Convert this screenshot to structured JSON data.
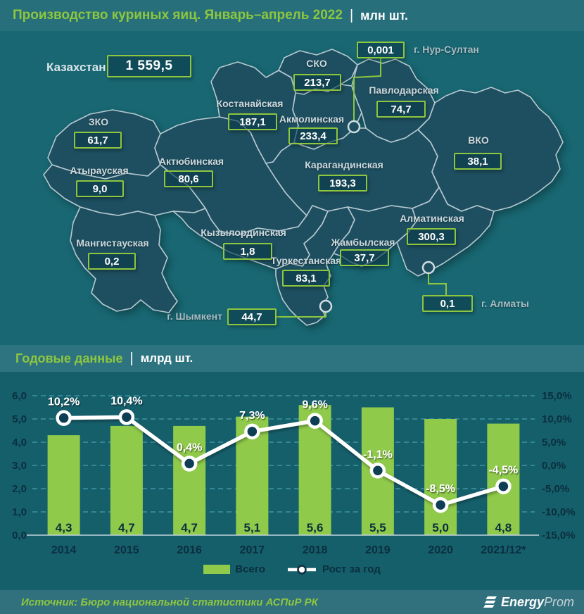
{
  "header": {
    "title": "Производство куриных яиц. Январь–апрель 2022",
    "separator": "|",
    "unit": "млн шт."
  },
  "map": {
    "country": {
      "label": "Казахстан",
      "value": "1 559,5"
    },
    "regions": [
      {
        "name": "ЗКО",
        "value": "61,7"
      },
      {
        "name": "Атырауская",
        "value": "9,0"
      },
      {
        "name": "Мангистауская",
        "value": "0,2"
      },
      {
        "name": "Актюбинская",
        "value": "80,6"
      },
      {
        "name": "Костанайская",
        "value": "187,1"
      },
      {
        "name": "СКО",
        "value": "213,7"
      },
      {
        "name": "Акмолинская",
        "value": "233,4"
      },
      {
        "name": "Павлодарская",
        "value": "74,7"
      },
      {
        "name": "Карагандинская",
        "value": "193,3"
      },
      {
        "name": "ВКО",
        "value": "38,1"
      },
      {
        "name": "Кызылординская",
        "value": "1,8"
      },
      {
        "name": "Туркестанская",
        "value": "83,1"
      },
      {
        "name": "Жамбылская",
        "value": "37,7"
      },
      {
        "name": "Алматинская",
        "value": "300,3"
      }
    ],
    "cities": [
      {
        "name": "г. Нур-Султан",
        "value": "0,001"
      },
      {
        "name": "г. Алматы",
        "value": "0,1"
      },
      {
        "name": "г. Шымкент",
        "value": "44,7"
      }
    ]
  },
  "annual": {
    "title": "Годовые данные",
    "separator": "|",
    "unit": "млрд шт."
  },
  "chart_data": {
    "type": "bar+line",
    "categories": [
      "2014",
      "2015",
      "2016",
      "2017",
      "2018",
      "2019",
      "2020",
      "2021/12*"
    ],
    "series": [
      {
        "name": "Всего",
        "type": "bar",
        "values": [
          4.3,
          4.7,
          4.7,
          5.1,
          5.6,
          5.5,
          5.0,
          4.8
        ],
        "labels": [
          "4,3",
          "4,7",
          "4,7",
          "5,1",
          "5,6",
          "5,5",
          "5,0",
          "4,8"
        ],
        "color": "#8fca4a"
      },
      {
        "name": "Рост за год",
        "type": "line",
        "values": [
          10.2,
          10.4,
          0.4,
          7.3,
          9.6,
          -1.1,
          -8.5,
          -4.5
        ],
        "labels": [
          "10,2%",
          "10,4%",
          "0,4%",
          "7,3%",
          "9,6%",
          "-1,1%",
          "-8,5%",
          "-4,5%"
        ],
        "color": "#ffffff"
      }
    ],
    "left_axis": {
      "ticks": [
        "6,0",
        "5,0",
        "4,0",
        "3,0",
        "2,0",
        "1,0",
        "0,0"
      ],
      "min": 0,
      "max": 6
    },
    "right_axis": {
      "ticks": [
        "15,0%",
        "10,0%",
        "5,0%",
        "0,0%",
        "-5,0%",
        "-10,0%",
        "-15,0%"
      ],
      "min": -15,
      "max": 15
    },
    "grid": "dashed",
    "legend_position": "bottom"
  },
  "footer": {
    "source": "Источник: Бюро национальной статистики АСПиР РК",
    "logo_bold": "Energy",
    "logo_light": "Prom"
  },
  "colors": {
    "accent_green": "#8dc63f",
    "bar_green": "#8fca4a",
    "panel_teal": "#186772",
    "region_fill": "#1d4f60",
    "dark_text": "#0b2e3e",
    "white": "#ffffff"
  }
}
